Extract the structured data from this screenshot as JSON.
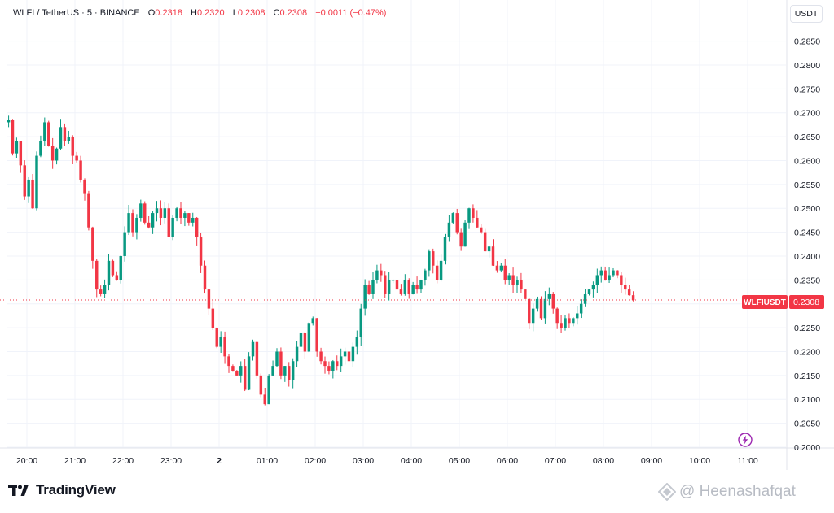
{
  "header": {
    "symbol": "WLFI / TetherUS · 5 · BINANCE",
    "o_label": "O",
    "o_value": "0.2318",
    "h_label": "H",
    "h_value": "0.2320",
    "l_label": "L",
    "l_value": "0.2308",
    "c_label": "C",
    "c_value": "0.2308",
    "change": "−0.0011 (−0.47%)"
  },
  "currency_button": "USDT",
  "price_tag": {
    "symbol": "WLFIUSDT",
    "price": "0.2308"
  },
  "branding": {
    "logo_text": "TradingView"
  },
  "watermark": {
    "text": "@ Heenashafqat"
  },
  "colors": {
    "up": "#089981",
    "down": "#f23645",
    "grid": "#f0f3fa",
    "axis_text": "#131722"
  },
  "chart_data": {
    "type": "candlestick",
    "ylim": [
      0.2,
      0.286
    ],
    "grid": true,
    "y_ticks": [
      "0.2850",
      "0.2800",
      "0.2750",
      "0.2700",
      "0.2650",
      "0.2600",
      "0.2550",
      "0.2500",
      "0.2450",
      "0.2400",
      "0.2350",
      "0.2300",
      "0.2250",
      "0.2200",
      "0.2150",
      "0.2100",
      "0.2050",
      "0.2000"
    ],
    "x_ticks": [
      {
        "label": "20:00",
        "hour": 0
      },
      {
        "label": "21:00",
        "hour": 1
      },
      {
        "label": "22:00",
        "hour": 2
      },
      {
        "label": "23:00",
        "hour": 3
      },
      {
        "label": "2",
        "hour": 4,
        "bold": true
      },
      {
        "label": "01:00",
        "hour": 5
      },
      {
        "label": "02:00",
        "hour": 6
      },
      {
        "label": "03:00",
        "hour": 7
      },
      {
        "label": "04:00",
        "hour": 8
      },
      {
        "label": "05:00",
        "hour": 9
      },
      {
        "label": "06:00",
        "hour": 10
      },
      {
        "label": "07:00",
        "hour": 11
      },
      {
        "label": "08:00",
        "hour": 12
      },
      {
        "label": "09:00",
        "hour": 13
      },
      {
        "label": "10:00",
        "hour": 14
      },
      {
        "label": "11:00",
        "hour": 15
      }
    ],
    "x_start_hour": -0.38,
    "candles_per_hour": 12,
    "last_price": 0.2308,
    "closes": [
      0.2685,
      0.2615,
      0.264,
      0.259,
      0.2525,
      0.256,
      0.25,
      0.261,
      0.264,
      0.268,
      0.263,
      0.26,
      0.2625,
      0.267,
      0.264,
      0.265,
      0.261,
      0.26,
      0.256,
      0.253,
      0.246,
      0.239,
      0.233,
      0.232,
      0.234,
      0.239,
      0.236,
      0.235,
      0.24,
      0.245,
      0.249,
      0.245,
      0.248,
      0.251,
      0.247,
      0.246,
      0.249,
      0.25,
      0.248,
      0.25,
      0.244,
      0.248,
      0.25,
      0.248,
      0.249,
      0.247,
      0.248,
      0.244,
      0.238,
      0.233,
      0.229,
      0.225,
      0.221,
      0.223,
      0.219,
      0.217,
      0.216,
      0.215,
      0.217,
      0.212,
      0.219,
      0.222,
      0.215,
      0.211,
      0.209,
      0.215,
      0.217,
      0.22,
      0.215,
      0.217,
      0.214,
      0.218,
      0.221,
      0.224,
      0.22,
      0.226,
      0.227,
      0.22,
      0.218,
      0.217,
      0.216,
      0.218,
      0.217,
      0.219,
      0.22,
      0.218,
      0.221,
      0.223,
      0.229,
      0.234,
      0.232,
      0.235,
      0.237,
      0.236,
      0.232,
      0.235,
      0.235,
      0.233,
      0.232,
      0.235,
      0.232,
      0.234,
      0.233,
      0.235,
      0.237,
      0.241,
      0.238,
      0.235,
      0.239,
      0.244,
      0.247,
      0.249,
      0.245,
      0.242,
      0.247,
      0.25,
      0.248,
      0.246,
      0.245,
      0.241,
      0.242,
      0.238,
      0.237,
      0.238,
      0.235,
      0.236,
      0.234,
      0.235,
      0.233,
      0.231,
      0.226,
      0.229,
      0.231,
      0.227,
      0.231,
      0.232,
      0.229,
      0.226,
      0.225,
      0.227,
      0.226,
      0.227,
      0.228,
      0.23,
      0.232,
      0.233,
      0.234,
      0.236,
      0.237,
      0.235,
      0.236,
      0.237,
      0.236,
      0.234,
      0.233,
      0.2318,
      0.2308
    ],
    "open_first": 0.268
  }
}
